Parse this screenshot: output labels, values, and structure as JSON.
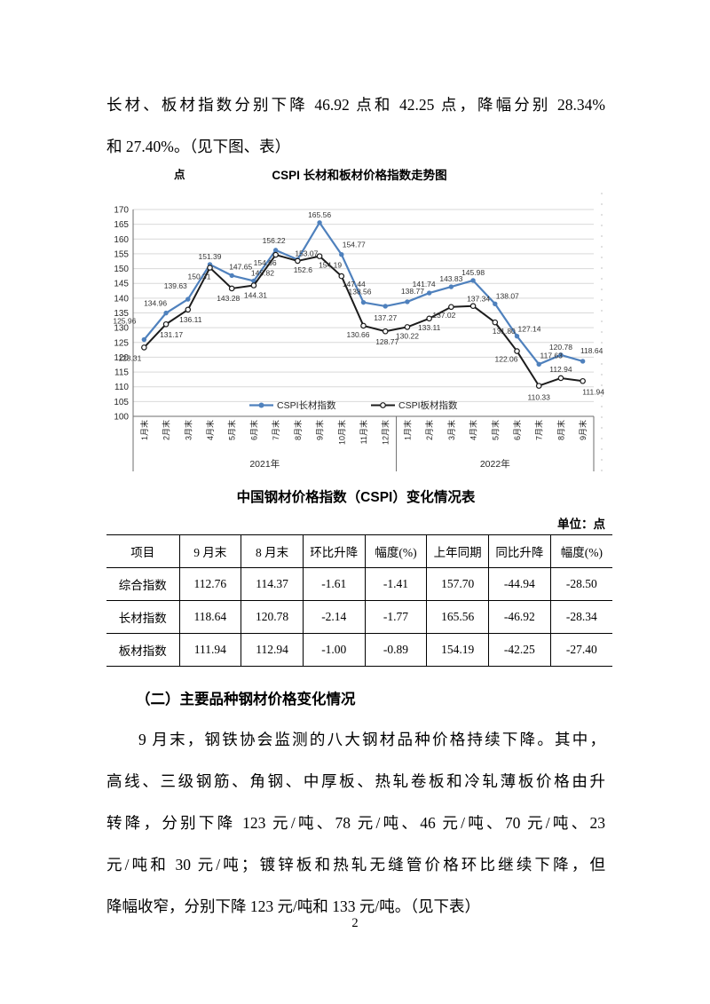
{
  "page": {
    "number": "2"
  },
  "intro": {
    "lines": [
      "长材、板材指数分别下降 46.92 点和 42.25 点，降幅分别 28.34%",
      "和 27.40%。（见下图、表）"
    ]
  },
  "chart": {
    "unit_label": "点",
    "title": "CSPI 长材和板材价格指数走势图"
  },
  "chart_data": {
    "type": "line",
    "title": "CSPI 长材和板材价格指数走势图",
    "unit": "点",
    "ylim": [
      100,
      170
    ],
    "ytick_step": 5,
    "grid": true,
    "legend_position": "bottom-inside",
    "x_groups": [
      {
        "label": "2021年",
        "count": 12
      },
      {
        "label": "2022年",
        "count": 9
      }
    ],
    "categories": [
      "1月末",
      "2月末",
      "3月末",
      "4月末",
      "5月末",
      "6月末",
      "7月末",
      "8月末",
      "9月末",
      "10月末",
      "11月末",
      "12月末",
      "1月末",
      "2月末",
      "3月末",
      "4月末",
      "5月末",
      "6月末",
      "7月末",
      "8月末",
      "9月末"
    ],
    "series": [
      {
        "name": "CSPI长材指数",
        "color": "#4f81bd",
        "marker": "solid-circle",
        "values": [
          125.96,
          134.96,
          139.63,
          151.39,
          147.65,
          145.82,
          156.22,
          153.07,
          165.56,
          154.77,
          138.56,
          137.27,
          138.77,
          141.74,
          143.83,
          145.98,
          138.07,
          127.14,
          117.63,
          120.78,
          118.64
        ],
        "labels": [
          "125.96",
          "134.96",
          "139.63",
          "151.39",
          "147.65",
          "145.82",
          "156.22",
          "153.07",
          "165.56",
          "154.77",
          "138.56",
          "137.27",
          "138.77",
          "141.74",
          "143.83",
          "145.98",
          "138.07",
          "127.14",
          "117.63",
          "120.78",
          "118.64"
        ]
      },
      {
        "name": "CSPI板材指数",
        "color": "#1c1c1c",
        "marker": "open-circle",
        "values": [
          123.31,
          131.17,
          136.11,
          150.31,
          143.28,
          144.31,
          154.66,
          152.6,
          154.19,
          147.44,
          130.66,
          128.77,
          130.22,
          133.11,
          137.02,
          137.34,
          131.8,
          122.06,
          110.33,
          112.94,
          111.94
        ],
        "labels": [
          "123.31",
          "131.17",
          "136.11",
          "150.31",
          "143.28",
          "144.31",
          "154.66",
          "152.6",
          "154.19",
          "147.44",
          "130.66",
          "128.77",
          "130.22",
          "133.11",
          "137.02",
          "137.34",
          "131.80",
          "122.06",
          "110.33",
          "112.94",
          "111.94"
        ]
      }
    ]
  },
  "table": {
    "title": "中国钢材价格指数（CSPI）变化情况表",
    "unit_label": "单位：点",
    "headers": [
      "项目",
      "9 月末",
      "8 月末",
      "环比升降",
      "幅度(%)",
      "上年同期",
      "同比升降",
      "幅度(%)"
    ],
    "rows": [
      [
        "综合指数",
        "112.76",
        "114.37",
        "-1.61",
        "-1.41",
        "157.70",
        "-44.94",
        "-28.50"
      ],
      [
        "长材指数",
        "118.64",
        "120.78",
        "-2.14",
        "-1.77",
        "165.56",
        "-46.92",
        "-28.34"
      ],
      [
        "板材指数",
        "111.94",
        "112.94",
        "-1.00",
        "-0.89",
        "154.19",
        "-42.25",
        "-27.40"
      ]
    ]
  },
  "section": {
    "heading": "（二）主要品种钢材价格变化情况",
    "lines": [
      "9 月末，钢铁协会监测的八大钢材品种价格持续下降。其中，",
      "高线、三级钢筋、角钢、中厚板、热轧卷板和冷轧薄板价格由升",
      "转降，分别下降 123 元/吨、78 元/吨、46 元/吨、70 元/吨、23",
      "元/吨和 30 元/吨；镀锌板和热轧无缝管价格环比继续下降，但",
      "降幅收窄，分别下降 123 元/吨和 133 元/吨。（见下表）"
    ]
  }
}
